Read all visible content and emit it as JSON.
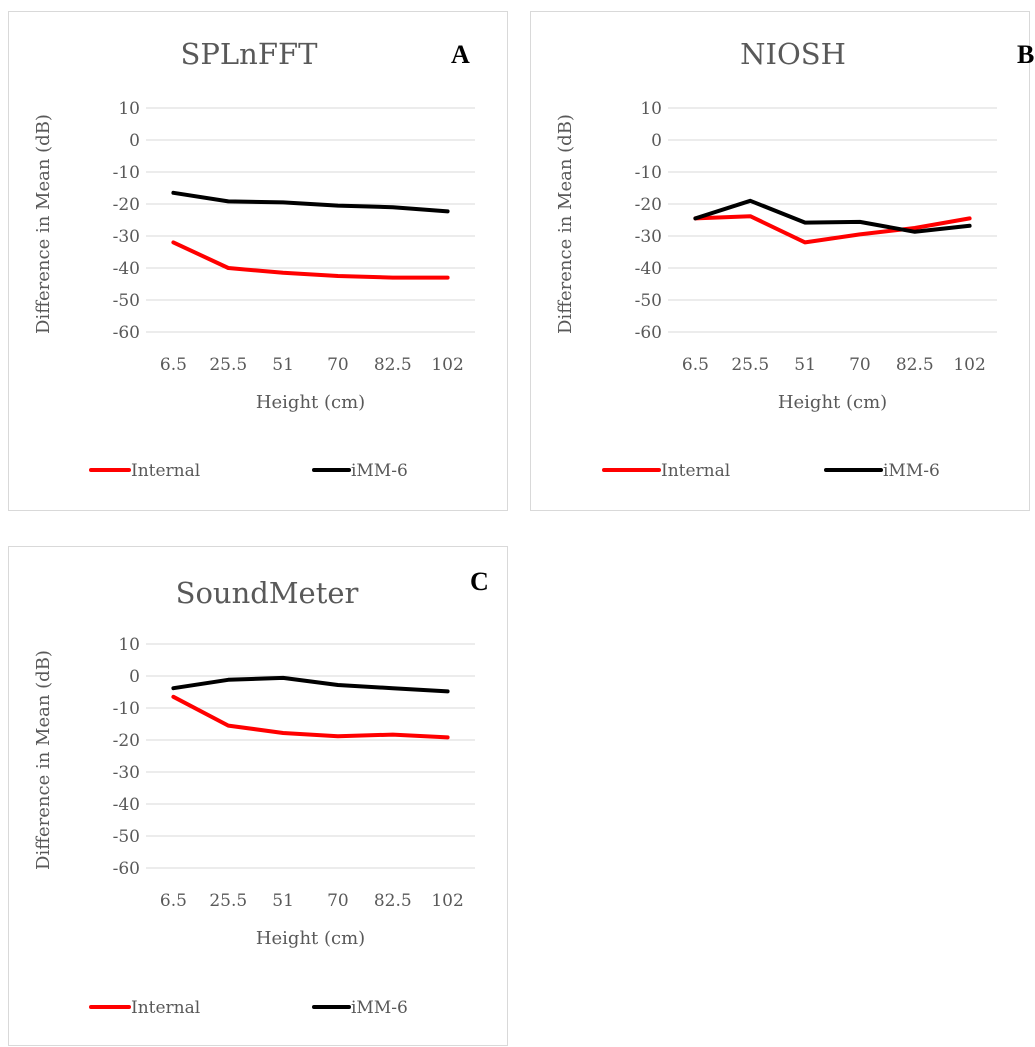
{
  "colors": {
    "internal": "#ff0000",
    "imm6": "#000000",
    "grid": "#d9d9d9",
    "text": "#595959"
  },
  "chart_data": [
    {
      "type": "line",
      "panel_label": "A",
      "title": "SPLnFFT",
      "xlabel": "Height (cm)",
      "ylabel": "Difference in Mean (dB)",
      "categories": [
        "6.5",
        "25.5",
        "51",
        "70",
        "82.5",
        "102"
      ],
      "yticks": [
        "10",
        "0",
        "-10",
        "-20",
        "-30",
        "-40",
        "-50",
        "-60"
      ],
      "ylim": [
        -60,
        10
      ],
      "grid": true,
      "legend_position": "bottom",
      "series": [
        {
          "name": "Internal",
          "values": [
            -32,
            -40,
            -41.5,
            -42.5,
            -43,
            -43
          ]
        },
        {
          "name": "iMM-6",
          "values": [
            -16.5,
            -19.2,
            -19.5,
            -20.5,
            -21,
            -22.3
          ]
        }
      ]
    },
    {
      "type": "line",
      "panel_label": "B",
      "title": "NIOSH",
      "xlabel": "Height (cm)",
      "ylabel": "Difference in Mean (dB)",
      "categories": [
        "6.5",
        "25.5",
        "51",
        "70",
        "82.5",
        "102"
      ],
      "yticks": [
        "10",
        "0",
        "-10",
        "-20",
        "-30",
        "-40",
        "-50",
        "-60"
      ],
      "ylim": [
        -60,
        10
      ],
      "grid": true,
      "legend_position": "bottom",
      "series": [
        {
          "name": "Internal",
          "values": [
            -24.5,
            -23.8,
            -32,
            -29.5,
            -27.5,
            -24.5
          ]
        },
        {
          "name": "iMM-6",
          "values": [
            -24.5,
            -19,
            -25.8,
            -25.6,
            -28.7,
            -26.8
          ]
        }
      ]
    },
    {
      "type": "line",
      "panel_label": "C",
      "title": "SoundMeter",
      "xlabel": "Height (cm)",
      "ylabel": "Difference in Mean (dB)",
      "categories": [
        "6.5",
        "25.5",
        "51",
        "70",
        "82.5",
        "102"
      ],
      "yticks": [
        "10",
        "0",
        "-10",
        "-20",
        "-30",
        "-40",
        "-50",
        "-60"
      ],
      "ylim": [
        -60,
        10
      ],
      "grid": true,
      "legend_position": "bottom",
      "series": [
        {
          "name": "Internal",
          "values": [
            -6.5,
            -15.5,
            -17.8,
            -18.8,
            -18.3,
            -19.2
          ]
        },
        {
          "name": "iMM-6",
          "values": [
            -3.8,
            -1.2,
            -0.6,
            -2.8,
            -3.8,
            -4.8
          ]
        }
      ]
    }
  ]
}
